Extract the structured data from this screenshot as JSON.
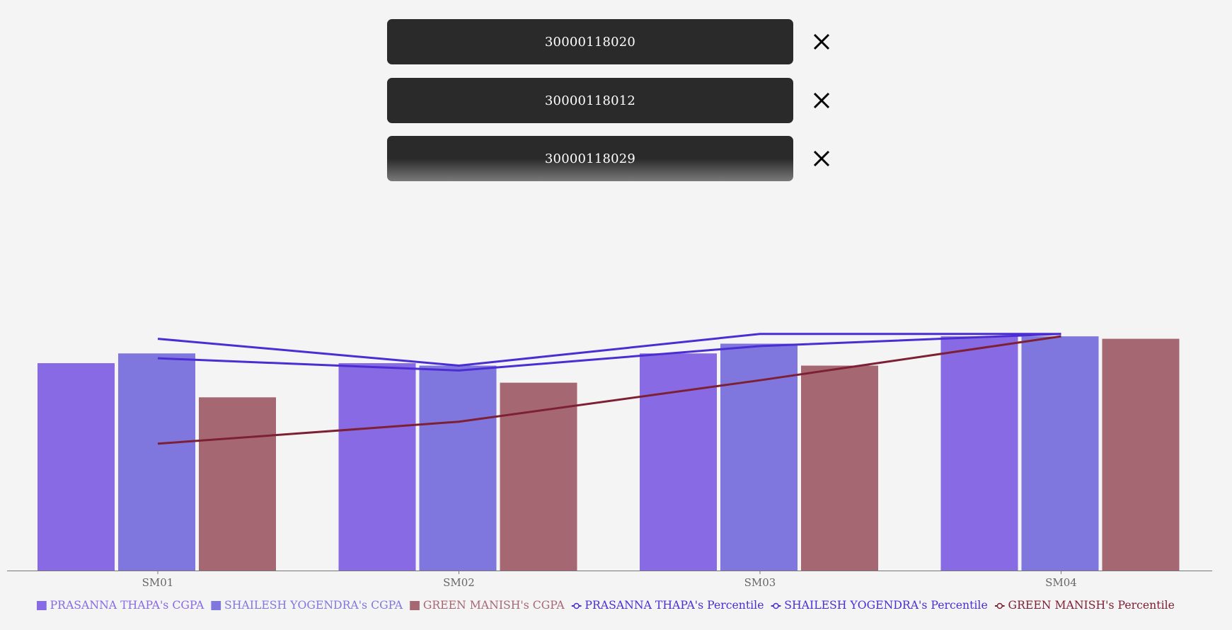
{
  "entries": [
    {
      "id": "30000118020",
      "remove_icon": "close-icon"
    },
    {
      "id": "30000118012",
      "remove_icon": "close-icon"
    },
    {
      "id": "30000118029",
      "remove_icon": "close-icon"
    }
  ],
  "chart_data": {
    "type": "bar",
    "categories": [
      "SM01",
      "SM02",
      "SM03",
      "SM04"
    ],
    "ylim": [
      0,
      11.2
    ],
    "y2lim": [
      0,
      112
    ],
    "grid": false,
    "legend_position": "bottom",
    "series": [
      {
        "name": "PRASANNA THAPA's CGPA",
        "kind": "bar",
        "axis": "left",
        "color": "#876ae4",
        "values": [
          8.5,
          8.5,
          8.9,
          9.6
        ]
      },
      {
        "name": "SHAILESH YOGENDRA's CGPA",
        "kind": "bar",
        "axis": "left",
        "color": "#8077de",
        "values": [
          8.9,
          8.4,
          9.3,
          9.6
        ]
      },
      {
        "name": "GREEN MANISH's CGPA",
        "kind": "bar",
        "axis": "left",
        "color": "#a56873",
        "values": [
          7.1,
          7.7,
          8.4,
          9.5
        ]
      },
      {
        "name": "PRASANNA THAPA's Percentile",
        "kind": "line",
        "axis": "right",
        "color": "#4b2ed3",
        "values": [
          95,
          84,
          97,
          97
        ]
      },
      {
        "name": "SHAILESH YOGENDRA's Percentile",
        "kind": "line",
        "axis": "right",
        "color": "#4b2ed3",
        "values": [
          87,
          82,
          92,
          97
        ]
      },
      {
        "name": "GREEN MANISH's Percentile",
        "kind": "line",
        "axis": "right",
        "color": "#7d2033",
        "values": [
          52,
          61,
          78,
          96
        ]
      }
    ]
  }
}
